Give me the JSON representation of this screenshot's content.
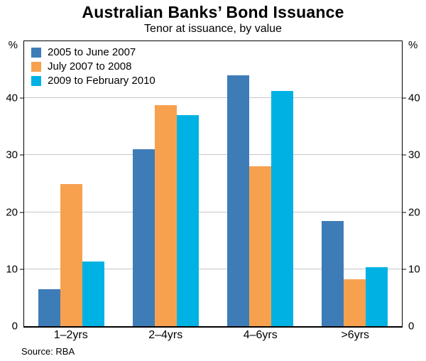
{
  "chart_data": {
    "type": "bar",
    "title": "Australian Banks’ Bond Issuance",
    "subtitle": "Tenor at issuance, by value",
    "categories": [
      "1–2yrs",
      "2–4yrs",
      "4–6yrs",
      ">6yrs"
    ],
    "series": [
      {
        "name": "2005 to June 2007",
        "color": "#3E7CB8",
        "values": [
          6.5,
          31,
          44,
          18.5
        ]
      },
      {
        "name": "July 2007 to 2008",
        "color": "#F7A14F",
        "values": [
          25,
          38.8,
          28,
          8.2
        ]
      },
      {
        "name": "2009 to February 2010",
        "color": "#00B2E3",
        "values": [
          11.4,
          37,
          41.3,
          10.3
        ]
      }
    ],
    "ylim": [
      0,
      50
    ],
    "yticks": [
      0,
      10,
      20,
      30,
      40
    ],
    "y_unit": "%",
    "grid": true,
    "legend_position": "top-left",
    "source": "Source: RBA"
  }
}
